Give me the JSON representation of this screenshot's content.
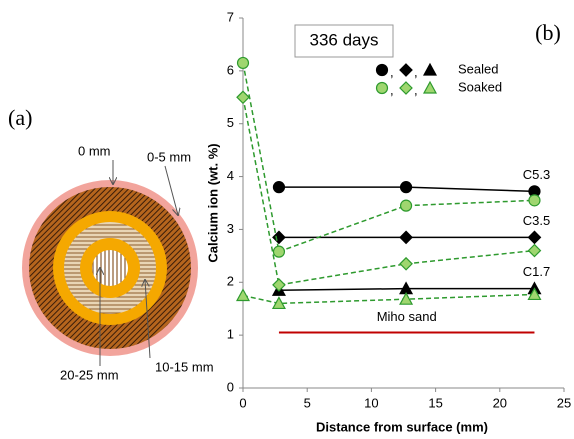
{
  "chart_data": {
    "type": "line",
    "panel_label": "(b)",
    "annotation": "336 days",
    "xlabel": "Distance from surface (mm)",
    "ylabel": "Calcium ion (wt. %)",
    "xlim": [
      0,
      25
    ],
    "xticks": [
      0,
      5,
      10,
      15,
      20,
      25
    ],
    "ylim": [
      0,
      7
    ],
    "yticks": [
      0,
      1,
      2,
      3,
      4,
      5,
      6,
      7
    ],
    "legend_separator": ",",
    "groups": [
      {
        "name": "Sealed",
        "color": "#000000",
        "fill": "#000000",
        "dashed": false,
        "series": [
          {
            "marker": "circle",
            "label": "C5.3",
            "x": [
              2.8,
              12.7,
              22.7
            ],
            "values": [
              3.8,
              3.8,
              3.72
            ]
          },
          {
            "marker": "diamond",
            "label": "C3.5",
            "x": [
              2.8,
              12.7,
              22.7
            ],
            "values": [
              2.85,
              2.85,
              2.85
            ]
          },
          {
            "marker": "triangle",
            "label": "C1.7",
            "x": [
              2.8,
              12.7,
              22.7
            ],
            "values": [
              1.85,
              1.88,
              1.88
            ]
          }
        ]
      },
      {
        "name": "Soaked",
        "color": "#2e9a2e",
        "fill": "#9fd66f",
        "dashed": true,
        "series": [
          {
            "marker": "circle",
            "x": [
              0,
              2.8,
              12.7,
              22.7
            ],
            "values": [
              6.15,
              2.58,
              3.45,
              3.55
            ]
          },
          {
            "marker": "diamond",
            "x": [
              0,
              2.8,
              12.7,
              22.7
            ],
            "values": [
              5.5,
              1.95,
              2.35,
              2.6
            ]
          },
          {
            "marker": "triangle",
            "x": [
              0,
              2.8,
              12.7,
              22.7
            ],
            "values": [
              1.75,
              1.6,
              1.68,
              1.77
            ]
          }
        ]
      }
    ],
    "reference": {
      "label": "Miho sand",
      "x": [
        2.8,
        22.7
      ],
      "y": 1.05,
      "color": "#c00000"
    }
  },
  "diagram": {
    "panel_label": "(a)",
    "labels": [
      "0 mm",
      "0-5 mm",
      "10-15 mm",
      "20-25 mm"
    ]
  }
}
